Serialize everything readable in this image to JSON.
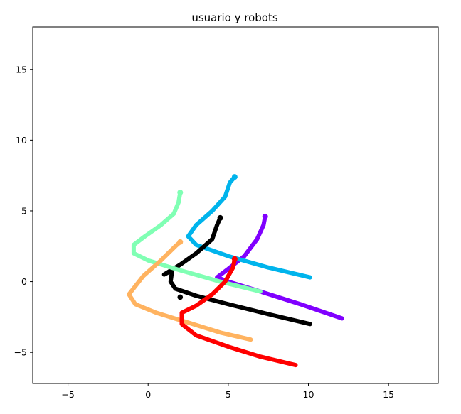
{
  "chart_data": {
    "type": "line",
    "title": "usuario y robots",
    "xlabel": "",
    "ylabel": "",
    "xlim": [
      -7.2,
      18.1
    ],
    "ylim": [
      -7.2,
      18.0
    ],
    "xticks": [
      -5,
      0,
      5,
      10,
      15
    ],
    "yticks": [
      -5,
      0,
      5,
      10,
      15
    ],
    "grid": false,
    "series": [
      {
        "color": "#8000ff",
        "points": [
          [
            7.3,
            4.6
          ],
          [
            7.2,
            4.0
          ],
          [
            6.8,
            3.0
          ],
          [
            6.0,
            1.8
          ],
          [
            5.0,
            0.9
          ],
          [
            4.3,
            0.3
          ],
          [
            5.0,
            0.0
          ],
          [
            7.0,
            -0.7
          ],
          [
            9.5,
            -1.6
          ],
          [
            12.1,
            -2.6
          ]
        ]
      },
      {
        "color": "#00b4ec",
        "points": [
          [
            5.4,
            7.4
          ],
          [
            5.1,
            7.0
          ],
          [
            4.8,
            6.0
          ],
          [
            4.0,
            5.0
          ],
          [
            3.0,
            4.0
          ],
          [
            2.5,
            3.2
          ],
          [
            3.0,
            2.6
          ],
          [
            5.0,
            1.8
          ],
          [
            7.5,
            1.0
          ],
          [
            10.1,
            0.3
          ]
        ]
      },
      {
        "color": "#000000",
        "points": [
          [
            4.5,
            4.5
          ],
          [
            4.3,
            4.0
          ],
          [
            4.0,
            3.0
          ],
          [
            3.0,
            2.0
          ],
          [
            2.0,
            1.2
          ],
          [
            1.0,
            0.5
          ],
          [
            1.5,
            0.8
          ],
          [
            1.4,
            0.0
          ],
          [
            1.7,
            -0.5
          ],
          [
            3.0,
            -1.0
          ],
          [
            5.0,
            -1.6
          ],
          [
            7.5,
            -2.3
          ],
          [
            10.1,
            -3.0
          ]
        ]
      },
      {
        "color": "#80ffb4",
        "points": [
          [
            2.0,
            6.3
          ],
          [
            1.9,
            5.6
          ],
          [
            1.6,
            4.8
          ],
          [
            0.8,
            4.0
          ],
          [
            -0.2,
            3.2
          ],
          [
            -0.9,
            2.6
          ],
          [
            -0.9,
            2.0
          ],
          [
            0.0,
            1.5
          ],
          [
            2.0,
            0.8
          ],
          [
            4.5,
            0.0
          ],
          [
            7.0,
            -0.7
          ]
        ]
      },
      {
        "color": "#ffb360",
        "points": [
          [
            2.0,
            2.8
          ],
          [
            1.7,
            2.5
          ],
          [
            0.8,
            1.5
          ],
          [
            -0.3,
            0.4
          ],
          [
            -1.2,
            -0.9
          ],
          [
            -0.8,
            -1.6
          ],
          [
            0.5,
            -2.2
          ],
          [
            2.5,
            -2.9
          ],
          [
            4.5,
            -3.6
          ],
          [
            6.4,
            -4.1
          ]
        ]
      },
      {
        "color": "#ff0000",
        "points": [
          [
            5.4,
            1.6
          ],
          [
            5.3,
            1.0
          ],
          [
            4.8,
            0.0
          ],
          [
            4.0,
            -0.9
          ],
          [
            3.0,
            -1.7
          ],
          [
            2.1,
            -2.2
          ],
          [
            2.1,
            -3.0
          ],
          [
            3.0,
            -3.8
          ],
          [
            5.0,
            -4.6
          ],
          [
            7.0,
            -5.3
          ],
          [
            9.2,
            -5.9
          ]
        ]
      }
    ],
    "isolated_points": [
      {
        "color": "#000000",
        "x": 2.0,
        "y": -1.1
      }
    ]
  }
}
